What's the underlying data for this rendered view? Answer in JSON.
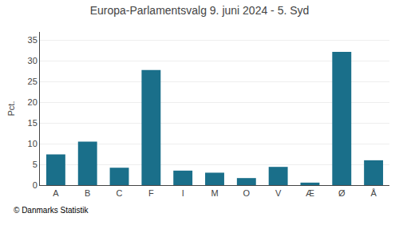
{
  "chart_data": {
    "type": "bar",
    "title": "Europa-Parlamentsvalg 9. juni 2024 - 5. Syd",
    "categories": [
      "A",
      "B",
      "C",
      "F",
      "I",
      "M",
      "O",
      "V",
      "Æ",
      "Ø",
      "Å"
    ],
    "values": [
      7.4,
      10.5,
      4.2,
      27.8,
      3.5,
      3.0,
      1.7,
      4.4,
      0.6,
      32.2,
      6.0
    ],
    "color": "#1a6f8a",
    "ylabel": "Pct.",
    "ylim": [
      0,
      37
    ],
    "yticks": [
      0,
      5,
      10,
      15,
      20,
      25,
      30,
      35
    ],
    "grid": true,
    "annotations": [
      "© Danmarks Statistik"
    ]
  }
}
